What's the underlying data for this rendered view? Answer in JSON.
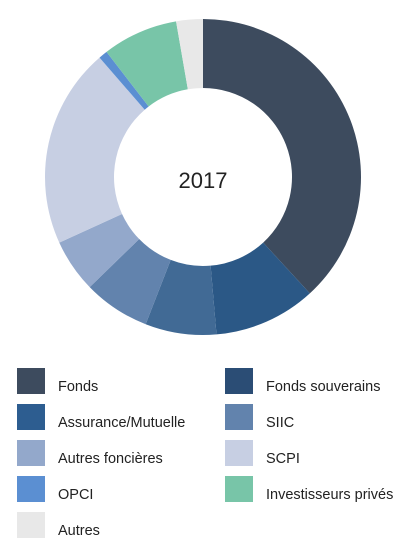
{
  "chart_data": {
    "type": "pie",
    "style": "donut",
    "center_text": "2017",
    "categories": [
      "Fonds",
      "Fonds souverains",
      "Assurance/Mutuelle",
      "SIIC",
      "Autres foncières",
      "SCPI",
      "OPCI",
      "Investisseurs privés",
      "Autres"
    ],
    "values": [
      42.0,
      11.5,
      8.0,
      7.5,
      6.0,
      22.5,
      1.0,
      8.5,
      3.0
    ],
    "colors": [
      "#3d4b5e",
      "#2b5886",
      "#416a95",
      "#6283ad",
      "#93a8cb",
      "#c7cfe3",
      "#5b8fd2",
      "#78c5a8",
      "#e8e8e8"
    ],
    "start": "top",
    "direction": "clockwise",
    "legend_position": "bottom",
    "legend_columns": 2,
    "legend": [
      {
        "label": "Fonds",
        "color": "#3d4b5e"
      },
      {
        "label": "Fonds souverains",
        "color": "#2b4d75"
      },
      {
        "label": "Assurance/Mutuelle",
        "color": "#2d5d90"
      },
      {
        "label": "SIIC",
        "color": "#6283ad"
      },
      {
        "label": "Autres foncières",
        "color": "#93a8cb"
      },
      {
        "label": "SCPI",
        "color": "#c7cfe3"
      },
      {
        "label": "OPCI",
        "color": "#5b8fd2"
      },
      {
        "label": "Investisseurs privés",
        "color": "#78c5a8"
      },
      {
        "label": "Autres",
        "color": "#e8e8e8"
      }
    ]
  }
}
